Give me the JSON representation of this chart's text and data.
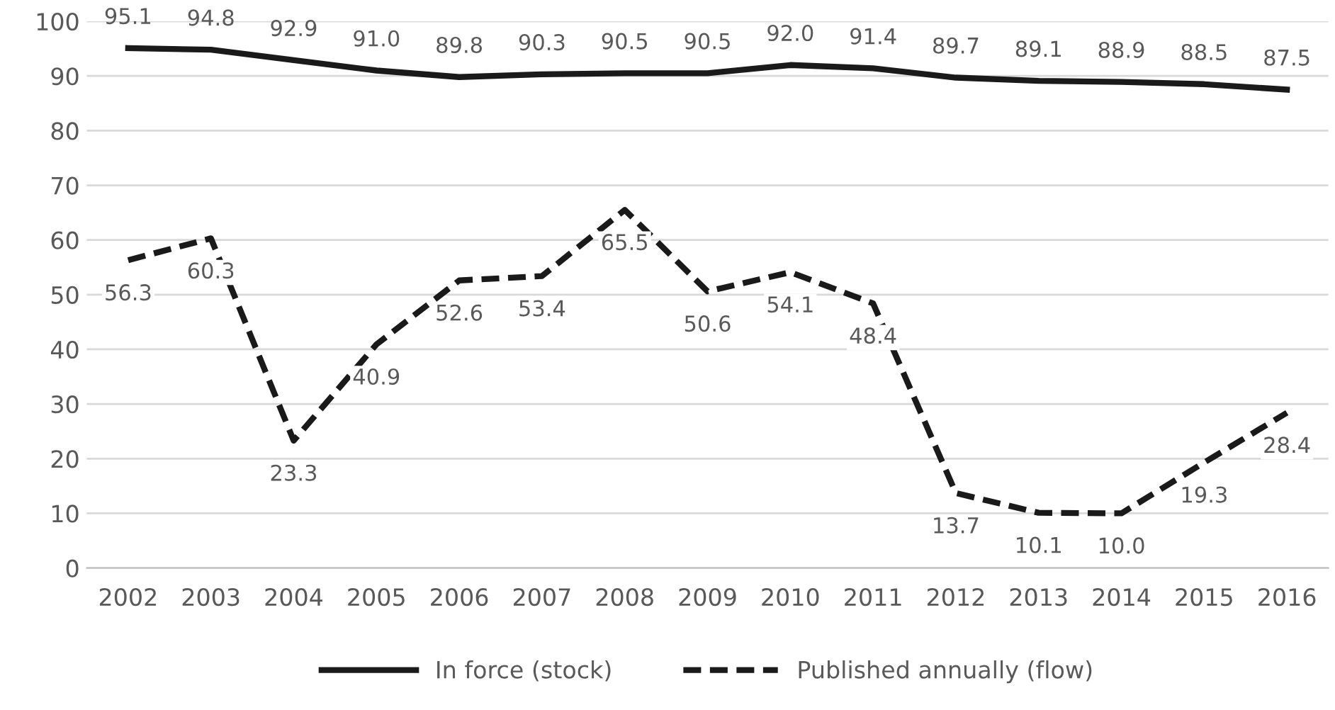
{
  "chart_data": {
    "type": "line",
    "categories": [
      "2002",
      "2003",
      "2004",
      "2005",
      "2006",
      "2007",
      "2008",
      "2009",
      "2010",
      "2011",
      "2012",
      "2013",
      "2014",
      "2015",
      "2016"
    ],
    "series": [
      {
        "name": "In force (stock)",
        "color": "#1a1a1a",
        "line_style": "solid",
        "values": [
          95.1,
          94.8,
          92.9,
          91.0,
          89.8,
          90.3,
          90.5,
          90.5,
          92.0,
          91.4,
          89.7,
          89.1,
          88.9,
          88.5,
          87.5
        ],
        "value_labels": [
          "95.1",
          "94.8",
          "92.9",
          "91.0",
          "89.8",
          "90.3",
          "90.5",
          "90.5",
          "92.0",
          "91.4",
          "89.7",
          "89.1",
          "88.9",
          "88.5",
          "87.5"
        ]
      },
      {
        "name": "Published annually (flow)",
        "color": "#1a1a1a",
        "line_style": "dashed",
        "values": [
          56.3,
          60.3,
          23.3,
          40.9,
          52.6,
          53.4,
          65.5,
          50.6,
          54.1,
          48.4,
          13.7,
          10.1,
          10.0,
          19.3,
          28.4
        ],
        "value_labels": [
          "56.3",
          "60.3",
          "23.3",
          "40.9",
          "52.6",
          "53.4",
          "65.5",
          "50.6",
          "54.1",
          "48.4",
          "13.7",
          "10.1",
          "10.0",
          "19.3",
          "28.4"
        ]
      }
    ],
    "ylim": [
      0,
      100
    ],
    "yticks": [
      0,
      10,
      20,
      30,
      40,
      50,
      60,
      70,
      80,
      90,
      100
    ],
    "grid": "y",
    "legend": "bottom",
    "marker": "none"
  }
}
